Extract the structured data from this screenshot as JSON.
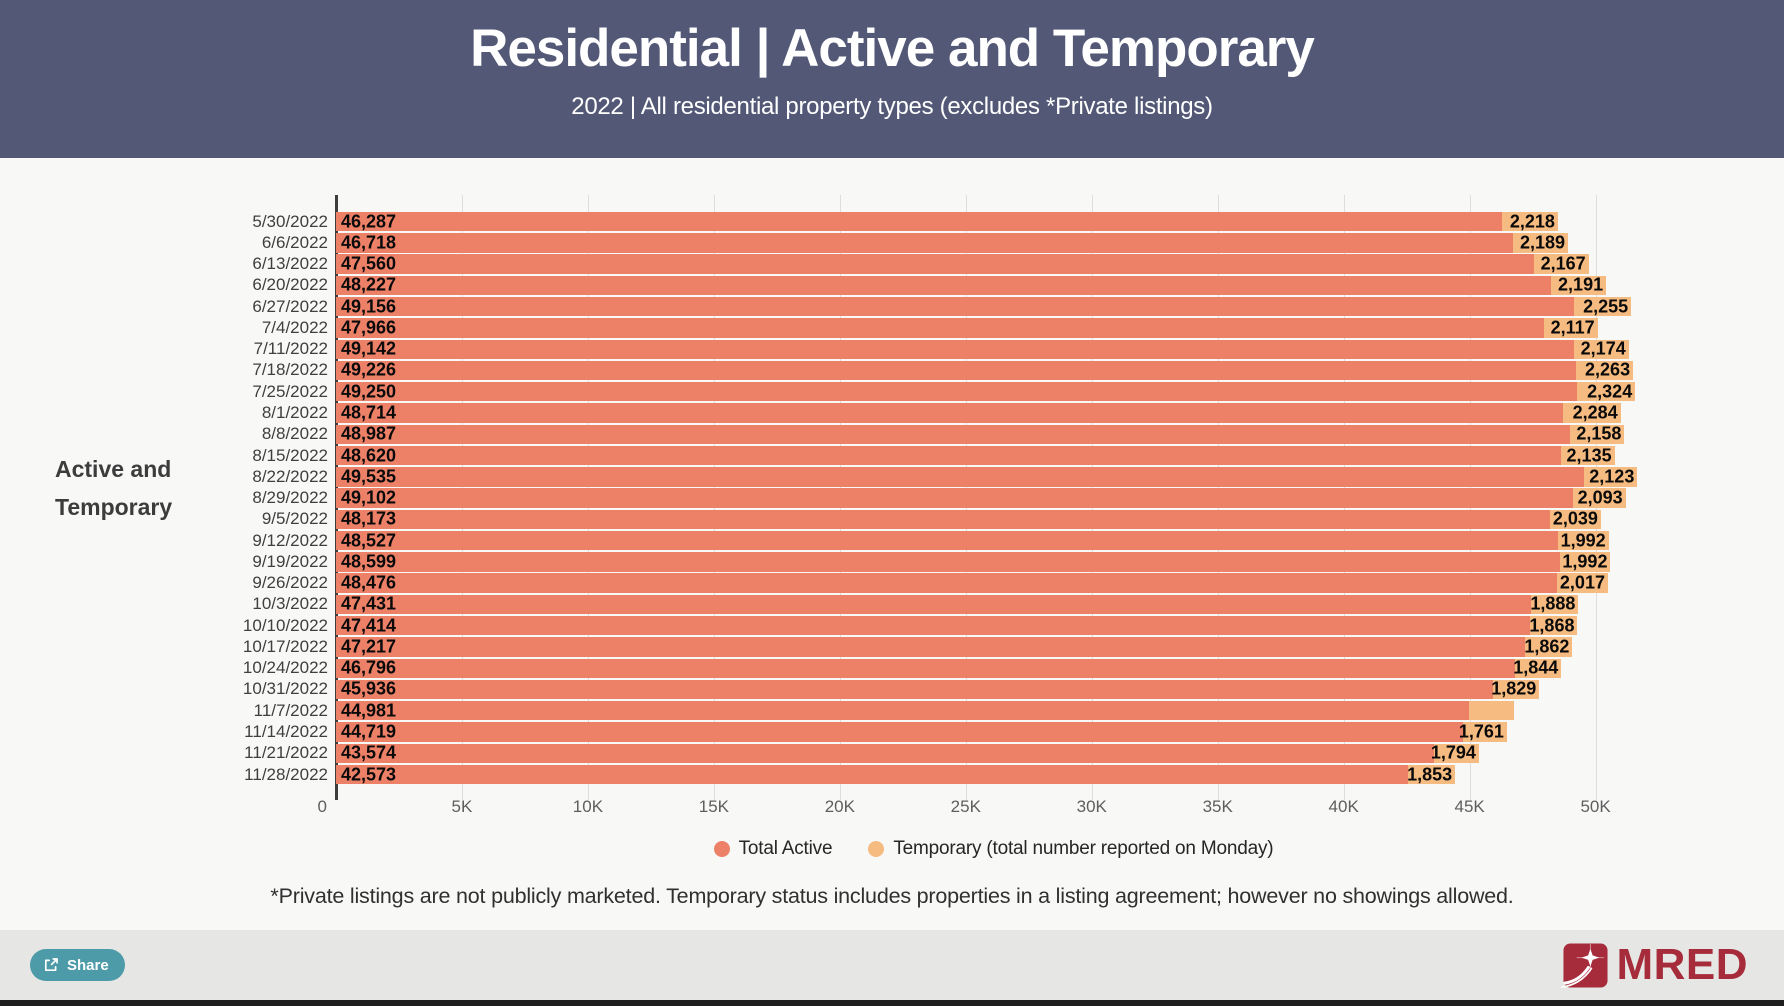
{
  "header": {
    "title": "Residential | Active and Temporary",
    "subtitle": "2022 | All residential property types (excludes *Private listings)"
  },
  "chart": {
    "side_label_lines": [
      "Active and",
      "Temporary"
    ]
  },
  "chart_data": {
    "type": "bar",
    "orientation": "horizontal",
    "stacked": true,
    "title": "Active and Temporary",
    "categories": [
      "5/30/2022",
      "6/6/2022",
      "6/13/2022",
      "6/20/2022",
      "6/27/2022",
      "7/4/2022",
      "7/11/2022",
      "7/18/2022",
      "7/25/2022",
      "8/1/2022",
      "8/8/2022",
      "8/15/2022",
      "8/22/2022",
      "8/29/2022",
      "9/5/2022",
      "9/12/2022",
      "9/19/2022",
      "9/26/2022",
      "10/3/2022",
      "10/10/2022",
      "10/17/2022",
      "10/24/2022",
      "10/31/2022",
      "11/7/2022",
      "11/14/2022",
      "11/21/2022",
      "11/28/2022"
    ],
    "series": [
      {
        "name": "Total Active",
        "color": "#ED8168",
        "values": [
          46287,
          46718,
          47560,
          48227,
          49156,
          47966,
          49142,
          49226,
          49250,
          48714,
          48987,
          48620,
          49535,
          49102,
          48173,
          48527,
          48599,
          48476,
          47431,
          47414,
          47217,
          46796,
          45936,
          44981,
          44719,
          43574,
          42573
        ],
        "labels": [
          "46,287",
          "46,718",
          "47,560",
          "48,227",
          "49,156",
          "47,966",
          "49,142",
          "49,226",
          "49,250",
          "48,714",
          "48,987",
          "48,620",
          "49,535",
          "49,102",
          "48,173",
          "48,527",
          "48,599",
          "48,476",
          "47,431",
          "47,414",
          "47,217",
          "46,796",
          "45,936",
          "44,981",
          "44,719",
          "43,574",
          "42,573"
        ]
      },
      {
        "name": "Temporary (total number reported on Monday)",
        "color": "#F5BB80",
        "values": [
          2218,
          2189,
          2167,
          2191,
          2255,
          2117,
          2174,
          2263,
          2324,
          2284,
          2158,
          2135,
          2123,
          2093,
          2039,
          1992,
          1992,
          2017,
          1888,
          1868,
          1862,
          1844,
          1829,
          1800,
          1761,
          1794,
          1853
        ],
        "labels": [
          "2,218",
          "2,189",
          "2,167",
          "2,191",
          "2,255",
          "2,117",
          "2,174",
          "2,263",
          "2,324",
          "2,284",
          "2,158",
          "2,135",
          "2,123",
          "2,093",
          "2,039",
          "1,992",
          "1,992",
          "2,017",
          "1,888",
          "1,868",
          "1,862",
          "1,844",
          "1,829",
          "",
          "1,761",
          "1,794",
          "1,853"
        ]
      }
    ],
    "xlim": [
      0,
      52200
    ],
    "x_ticks": [
      {
        "value": 0,
        "label": "0"
      },
      {
        "value": 5000,
        "label": "5K"
      },
      {
        "value": 10000,
        "label": "10K"
      },
      {
        "value": 15000,
        "label": "15K"
      },
      {
        "value": 20000,
        "label": "20K"
      },
      {
        "value": 25000,
        "label": "25K"
      },
      {
        "value": 30000,
        "label": "30K"
      },
      {
        "value": 35000,
        "label": "35K"
      },
      {
        "value": 40000,
        "label": "40K"
      },
      {
        "value": 45000,
        "label": "45K"
      },
      {
        "value": 50000,
        "label": "50K"
      }
    ],
    "grid": true,
    "legend_position": "bottom"
  },
  "legend": {
    "items": [
      {
        "label": "Total Active",
        "color": "#ED8168"
      },
      {
        "label": "Temporary (total number reported on Monday)",
        "color": "#F5BB80"
      }
    ]
  },
  "footnote": "*Private listings are not publicly marketed. Temporary status includes properties in a listing agreement; however no showings allowed.",
  "footer": {
    "share_label": "Share",
    "brand_name": "MRED"
  },
  "colors": {
    "header_bg": "#525876",
    "content_bg": "#F8F8F7",
    "footer_bg": "#E6E7E4",
    "active_bar": "#ED8168",
    "temporary_bar": "#F5BB80",
    "share_button": "#4D9AA8",
    "brand_maroon": "#A62B3B"
  }
}
